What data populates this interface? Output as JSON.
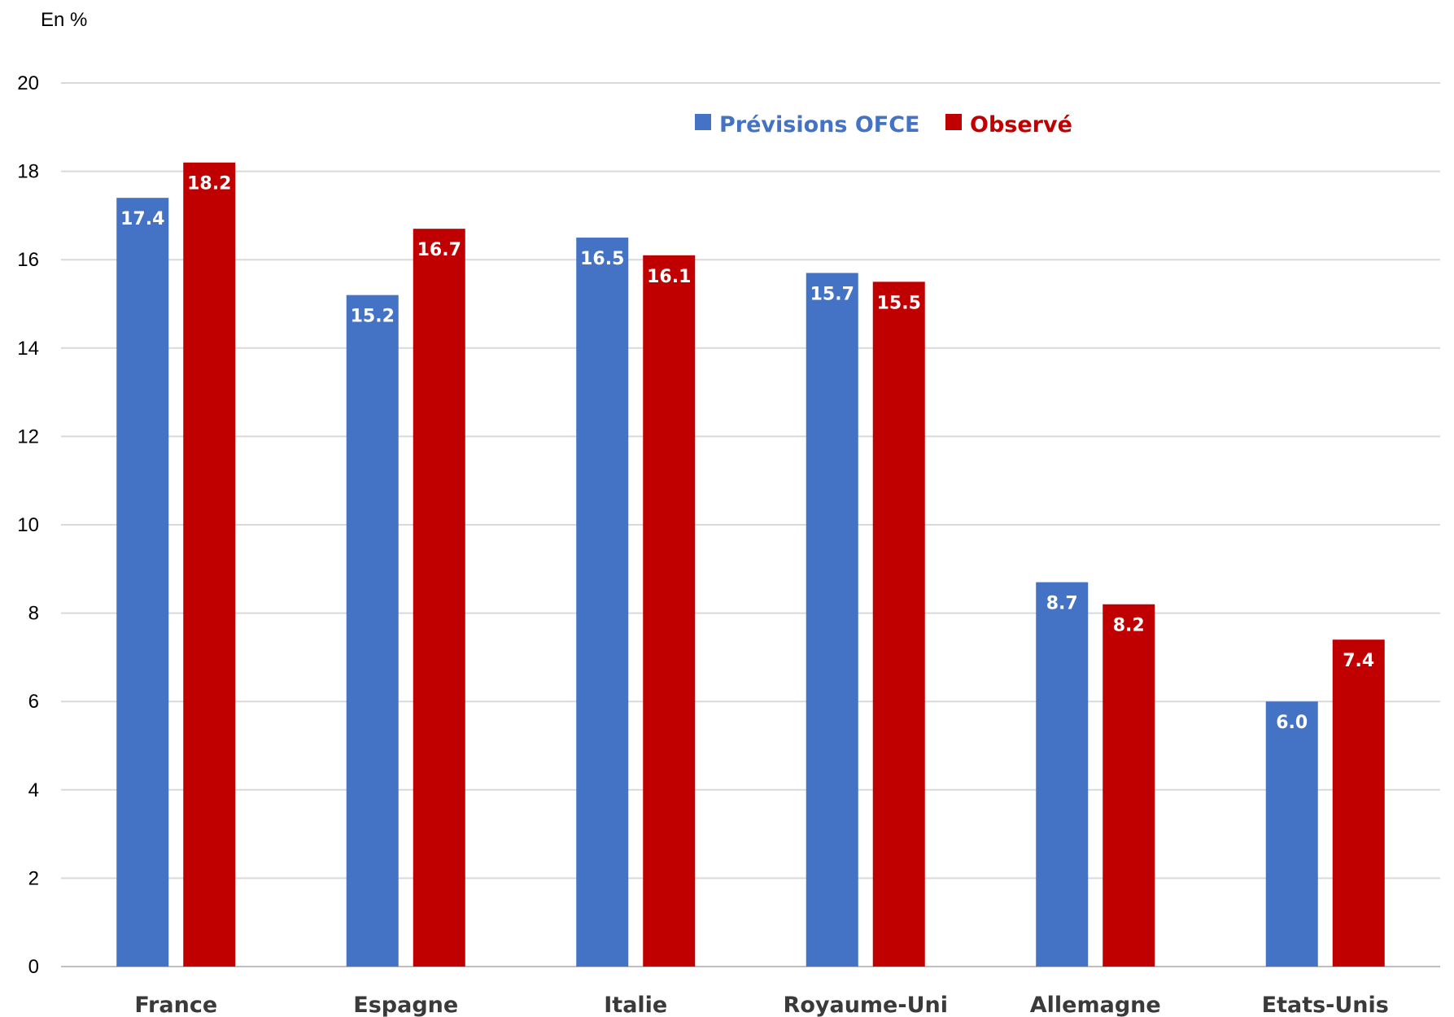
{
  "chart_data": {
    "type": "bar",
    "unit_label": "En %",
    "categories": [
      "France",
      "Espagne",
      "Italie",
      "Royaume-Uni",
      "Allemagne",
      "Etats-Unis"
    ],
    "series": [
      {
        "name": "Prévisions OFCE",
        "color": "#4472c4",
        "values": [
          17.4,
          15.2,
          16.5,
          15.7,
          8.7,
          6.0
        ]
      },
      {
        "name": "Observé",
        "color": "#c00000",
        "values": [
          18.2,
          16.7,
          16.1,
          15.5,
          8.2,
          7.4
        ]
      }
    ],
    "ylim": [
      0,
      20
    ],
    "yticks": [
      "0",
      "2",
      "4",
      "6",
      "8",
      "10",
      "12",
      "14",
      "16",
      "18",
      "20"
    ],
    "grid": true,
    "legend_position": "top-right",
    "data_labels": [
      [
        "17.4",
        "15.2",
        "16.5",
        "15.7",
        "8.7",
        "6.0"
      ],
      [
        "18.2",
        "16.7",
        "16.1",
        "15.5",
        "8.2",
        "7.4"
      ]
    ]
  }
}
